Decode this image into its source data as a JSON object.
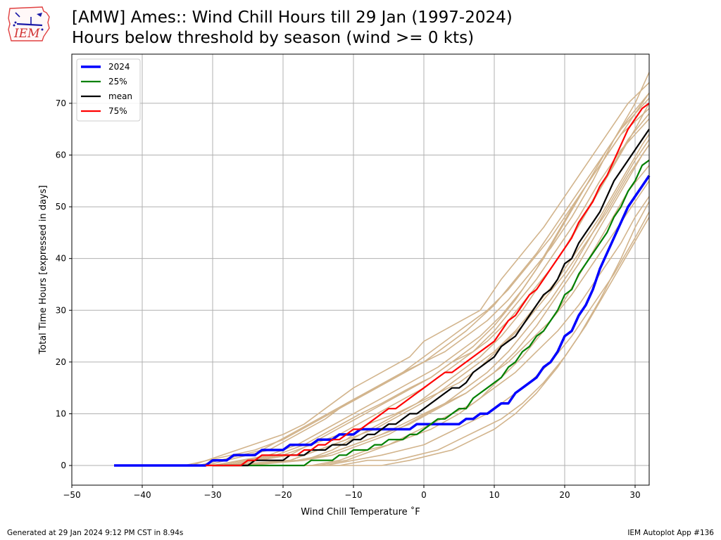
{
  "header": {
    "title_line1": "[AMW] Ames:: Wind Chill Hours till 29 Jan (1997-2024)",
    "title_line2": "Hours below threshold by season (wind >= 0 kts)",
    "logo_text": "IEM"
  },
  "footer": {
    "left": "Generated at 29 Jan 2024 9:12 PM CST in 8.94s",
    "right": "IEM Autoplot App #136"
  },
  "colors": {
    "season_2024": "#0000ff",
    "p25": "#008000",
    "mean": "#000000",
    "p75": "#ff0000",
    "other_seasons": "#d2b48c",
    "grid": "#b0b0b0"
  },
  "chart_data": {
    "type": "line",
    "title": "[AMW] Ames:: Wind Chill Hours till 29 Jan (1997-2024)",
    "subtitle": "Hours below threshold by season (wind >= 0 kts)",
    "xlabel": "Wind Chill Temperature ˚F",
    "ylabel": "Total Time Hours [expressed in days]",
    "xlim": [
      -50,
      32
    ],
    "ylim": [
      -3.8,
      79.5
    ],
    "xticks": [
      -50,
      -40,
      -30,
      -20,
      -10,
      0,
      10,
      20,
      30
    ],
    "yticks": [
      0,
      10,
      20,
      30,
      40,
      50,
      60,
      70
    ],
    "xtick_labels": [
      "−50",
      "−40",
      "−30",
      "−20",
      "−10",
      "0",
      "10",
      "20",
      "30"
    ],
    "ytick_labels": [
      "0",
      "10",
      "20",
      "30",
      "40",
      "50",
      "60",
      "70"
    ],
    "grid": true,
    "legend_position": "top-left",
    "series": [
      {
        "name": "2024",
        "color": "#0000ff",
        "x": [
          -44,
          -31,
          -30,
          -28,
          -27,
          -25,
          -24,
          -23,
          -20,
          -19,
          -16,
          -15,
          -13,
          -12,
          -10,
          -9,
          -8,
          -5,
          -3,
          -2,
          -1,
          0,
          5,
          6,
          7,
          8,
          9,
          10,
          11,
          12,
          13,
          14,
          15,
          16,
          17,
          18,
          19,
          20,
          21,
          22,
          23,
          24,
          25,
          26,
          27,
          28,
          29,
          30,
          31,
          32
        ],
        "y": [
          0,
          0,
          1,
          1,
          2,
          2,
          2,
          3,
          3,
          4,
          4,
          5,
          5,
          6,
          6,
          7,
          7,
          7,
          7,
          7,
          8,
          8,
          8,
          9,
          9,
          10,
          10,
          11,
          12,
          12,
          14,
          15,
          16,
          17,
          19,
          20,
          22,
          25,
          26,
          29,
          31,
          34,
          38,
          41,
          44,
          47,
          50,
          52,
          54,
          56
        ]
      },
      {
        "name": "25%",
        "color": "#008000",
        "x": [
          -30,
          -17,
          -16,
          -15,
          -13,
          -12,
          -11,
          -10,
          -9,
          -8,
          -7,
          -6,
          -5,
          -4,
          -3,
          -2,
          -1,
          0,
          1,
          2,
          3,
          4,
          5,
          6,
          7,
          8,
          9,
          10,
          11,
          12,
          13,
          14,
          15,
          16,
          17,
          18,
          19,
          20,
          21,
          22,
          23,
          24,
          25,
          26,
          27,
          28,
          29,
          30,
          31,
          32
        ],
        "y": [
          0,
          0,
          1,
          1,
          1,
          2,
          2,
          3,
          3,
          3,
          4,
          4,
          5,
          5,
          5,
          6,
          6,
          7,
          8,
          9,
          9,
          10,
          11,
          11,
          13,
          14,
          15,
          16,
          17,
          19,
          20,
          22,
          23,
          25,
          26,
          28,
          30,
          33,
          34,
          37,
          39,
          41,
          43,
          45,
          48,
          50,
          53,
          55,
          58,
          59
        ]
      },
      {
        "name": "mean",
        "color": "#000000",
        "x": [
          -30,
          -25,
          -24,
          -23,
          -21,
          -20,
          -19,
          -18,
          -17,
          -16,
          -15,
          -14,
          -13,
          -12,
          -11,
          -10,
          -9,
          -8,
          -7,
          -6,
          -5,
          -4,
          -3,
          -2,
          -1,
          0,
          1,
          2,
          3,
          4,
          5,
          6,
          7,
          8,
          9,
          10,
          11,
          12,
          13,
          14,
          15,
          16,
          17,
          18,
          19,
          20,
          21,
          22,
          23,
          24,
          25,
          26,
          27,
          28,
          29,
          30,
          31,
          32
        ],
        "y": [
          0,
          0,
          1,
          1,
          1,
          1,
          2,
          2,
          2,
          3,
          3,
          3,
          4,
          4,
          4,
          5,
          5,
          6,
          6,
          7,
          8,
          8,
          9,
          10,
          10,
          11,
          12,
          13,
          14,
          15,
          15,
          16,
          18,
          19,
          20,
          21,
          23,
          24,
          25,
          27,
          29,
          31,
          33,
          34,
          36,
          39,
          40,
          43,
          45,
          47,
          49,
          52,
          55,
          57,
          59,
          61,
          63,
          65
        ]
      },
      {
        "name": "75%",
        "color": "#ff0000",
        "x": [
          -31,
          -26,
          -25,
          -24,
          -23,
          -20,
          -19,
          -18,
          -17,
          -16,
          -15,
          -14,
          -13,
          -12,
          -11,
          -10,
          -9,
          -8,
          -7,
          -6,
          -5,
          -4,
          -3,
          -2,
          -1,
          0,
          1,
          2,
          3,
          4,
          5,
          6,
          7,
          8,
          9,
          10,
          11,
          12,
          13,
          14,
          15,
          16,
          17,
          18,
          19,
          20,
          21,
          22,
          23,
          24,
          25,
          26,
          27,
          28,
          29,
          30,
          31,
          32
        ],
        "y": [
          0,
          0,
          1,
          1,
          2,
          2,
          2,
          2,
          3,
          3,
          4,
          4,
          5,
          5,
          6,
          7,
          7,
          8,
          9,
          10,
          11,
          11,
          12,
          13,
          14,
          15,
          16,
          17,
          18,
          18,
          19,
          20,
          21,
          22,
          23,
          24,
          26,
          28,
          29,
          31,
          33,
          34,
          36,
          38,
          40,
          42,
          44,
          47,
          49,
          51,
          54,
          56,
          59,
          62,
          65,
          67,
          69,
          70
        ]
      },
      {
        "name": "",
        "color": "#d2b48c",
        "x": [
          -33,
          -20,
          -17,
          -13,
          -10,
          -6,
          -2,
          0,
          4,
          8,
          11,
          14,
          17,
          20,
          23,
          26,
          29,
          32
        ],
        "y": [
          0,
          6,
          8,
          12,
          15,
          18,
          21,
          24,
          27,
          30,
          36,
          41,
          46,
          52,
          58,
          64,
          70,
          74
        ]
      },
      {
        "name": "",
        "color": "#d2b48c",
        "x": [
          -31,
          -22,
          -18,
          -14,
          -11,
          -7,
          -3,
          0,
          3,
          6,
          10,
          13,
          16,
          19,
          22,
          25,
          28,
          32
        ],
        "y": [
          0,
          3,
          6,
          9,
          12,
          15,
          18,
          20,
          23,
          26,
          31,
          36,
          41,
          47,
          53,
          59,
          65,
          71
        ]
      },
      {
        "name": "",
        "color": "#d2b48c",
        "x": [
          -30,
          -21,
          -17,
          -13,
          -9,
          -6,
          -2,
          1,
          4,
          7,
          10,
          13,
          16,
          19,
          22,
          25,
          28,
          32
        ],
        "y": [
          0,
          2,
          4,
          7,
          10,
          12,
          15,
          17,
          20,
          22,
          26,
          31,
          36,
          42,
          48,
          55,
          61,
          67
        ]
      },
      {
        "name": "",
        "color": "#d2b48c",
        "x": [
          -29,
          -19,
          -15,
          -11,
          -8,
          -4,
          -1,
          2,
          5,
          8,
          11,
          14,
          17,
          20,
          23,
          26,
          29,
          32
        ],
        "y": [
          0,
          1,
          3,
          5,
          8,
          10,
          12,
          14,
          16,
          19,
          23,
          27,
          32,
          37,
          43,
          49,
          56,
          62
        ]
      },
      {
        "name": "",
        "color": "#d2b48c",
        "x": [
          -27,
          -18,
          -14,
          -10,
          -6,
          -3,
          0,
          3,
          6,
          9,
          12,
          15,
          18,
          21,
          24,
          27,
          30,
          32
        ],
        "y": [
          0,
          1,
          2,
          4,
          6,
          8,
          10,
          12,
          14,
          17,
          20,
          24,
          28,
          33,
          39,
          45,
          51,
          55
        ]
      },
      {
        "name": "",
        "color": "#d2b48c",
        "x": [
          -25,
          -16,
          -12,
          -8,
          -5,
          -2,
          1,
          4,
          7,
          10,
          13,
          16,
          19,
          22,
          25,
          28,
          30,
          32
        ],
        "y": [
          0,
          0,
          1,
          3,
          4,
          6,
          8,
          10,
          12,
          15,
          18,
          22,
          26,
          31,
          37,
          43,
          48,
          52
        ]
      },
      {
        "name": "",
        "color": "#d2b48c",
        "x": [
          -24,
          -14,
          -10,
          -6,
          -3,
          0,
          3,
          6,
          9,
          12,
          15,
          18,
          21,
          24,
          27,
          30,
          32
        ],
        "y": [
          0,
          0,
          1,
          2,
          3,
          4,
          6,
          8,
          10,
          13,
          16,
          20,
          25,
          31,
          37,
          44,
          49
        ]
      },
      {
        "name": "",
        "color": "#d2b48c",
        "x": [
          -22,
          -12,
          -8,
          -4,
          -1,
          2,
          5,
          8,
          11,
          14,
          17,
          20,
          23,
          26,
          29,
          32
        ],
        "y": [
          0,
          0,
          1,
          1,
          2,
          3,
          5,
          7,
          9,
          12,
          16,
          21,
          27,
          34,
          41,
          48
        ]
      },
      {
        "name": "",
        "color": "#d2b48c",
        "x": [
          -21,
          -10,
          -6,
          -2,
          1,
          4,
          7,
          10,
          13,
          16,
          19,
          22,
          25,
          28,
          30,
          32
        ],
        "y": [
          0,
          0,
          0,
          1,
          2,
          3,
          5,
          7,
          10,
          14,
          19,
          25,
          32,
          40,
          46,
          51
        ]
      },
      {
        "name": "",
        "color": "#d2b48c",
        "x": [
          -28,
          -19,
          -15,
          -11,
          -7,
          -3,
          1,
          4,
          7,
          10,
          13,
          16,
          19,
          22,
          25,
          28,
          32
        ],
        "y": [
          0,
          2,
          5,
          8,
          11,
          14,
          17,
          20,
          23,
          27,
          32,
          38,
          45,
          52,
          58,
          64,
          69
        ]
      },
      {
        "name": "",
        "color": "#d2b48c",
        "x": [
          -26,
          -17,
          -13,
          -9,
          -5,
          -1,
          2,
          5,
          8,
          11,
          14,
          17,
          20,
          23,
          26,
          29,
          32
        ],
        "y": [
          0,
          1,
          3,
          6,
          9,
          12,
          15,
          18,
          21,
          25,
          30,
          36,
          42,
          49,
          56,
          63,
          68
        ]
      },
      {
        "name": "",
        "color": "#d2b48c",
        "x": [
          -32,
          -23,
          -19,
          -15,
          -11,
          -7,
          -3,
          0,
          3,
          6,
          9,
          12,
          15,
          18,
          21,
          24,
          27,
          30,
          32
        ],
        "y": [
          0,
          3,
          6,
          9,
          12,
          15,
          18,
          21,
          24,
          27,
          30,
          34,
          39,
          44,
          50,
          56,
          62,
          68,
          72
        ]
      },
      {
        "name": "",
        "color": "#d2b48c",
        "x": [
          -29,
          -20,
          -16,
          -12,
          -8,
          -4,
          0,
          3,
          6,
          9,
          12,
          15,
          18,
          21,
          24,
          27,
          30,
          32
        ],
        "y": [
          0,
          2,
          4,
          6,
          9,
          12,
          15,
          18,
          21,
          24,
          28,
          33,
          38,
          44,
          51,
          58,
          65,
          70
        ]
      },
      {
        "name": "",
        "color": "#d2b48c",
        "x": [
          -27,
          -19,
          -15,
          -11,
          -7,
          -3,
          1,
          4,
          7,
          10,
          13,
          16,
          19,
          22,
          25,
          28,
          31,
          32
        ],
        "y": [
          0,
          1,
          3,
          5,
          7,
          10,
          13,
          16,
          19,
          22,
          26,
          31,
          36,
          42,
          48,
          55,
          62,
          64
        ]
      },
      {
        "name": "",
        "color": "#d2b48c",
        "x": [
          -25,
          -17,
          -13,
          -9,
          -5,
          -1,
          3,
          6,
          9,
          12,
          15,
          18,
          21,
          24,
          27,
          30,
          32
        ],
        "y": [
          0,
          1,
          2,
          4,
          6,
          9,
          12,
          15,
          18,
          22,
          27,
          32,
          38,
          45,
          52,
          59,
          63
        ]
      },
      {
        "name": "",
        "color": "#d2b48c",
        "x": [
          -23,
          -15,
          -11,
          -7,
          -3,
          1,
          5,
          8,
          11,
          14,
          17,
          20,
          23,
          26,
          29,
          32
        ],
        "y": [
          0,
          0,
          1,
          3,
          5,
          7,
          10,
          13,
          17,
          21,
          26,
          32,
          39,
          46,
          53,
          58
        ]
      },
      {
        "name": "",
        "color": "#d2b48c",
        "x": [
          -30,
          -22,
          -18,
          -14,
          -10,
          -6,
          -2,
          2,
          5,
          8,
          11,
          14,
          17,
          20,
          23,
          26,
          29,
          32
        ],
        "y": [
          0,
          2,
          4,
          7,
          10,
          13,
          16,
          19,
          22,
          25,
          29,
          34,
          40,
          47,
          54,
          61,
          67,
          72
        ]
      },
      {
        "name": "",
        "color": "#d2b48c",
        "x": [
          -34,
          -24,
          -20,
          -16,
          -12,
          -8,
          -4,
          0,
          3,
          6,
          9,
          12,
          15,
          18,
          21,
          24,
          27,
          30,
          32
        ],
        "y": [
          0,
          3,
          5,
          8,
          11,
          14,
          17,
          20,
          22,
          25,
          28,
          32,
          37,
          42,
          48,
          55,
          63,
          70,
          76
        ]
      },
      {
        "name": "",
        "color": "#d2b48c",
        "x": [
          -26,
          -18,
          -14,
          -10,
          -6,
          -2,
          2,
          6,
          10,
          13,
          16,
          19,
          22,
          25,
          28,
          31,
          32
        ],
        "y": [
          0,
          1,
          2,
          4,
          6,
          8,
          11,
          14,
          18,
          22,
          27,
          33,
          39,
          46,
          53,
          60,
          62
        ]
      }
    ]
  }
}
